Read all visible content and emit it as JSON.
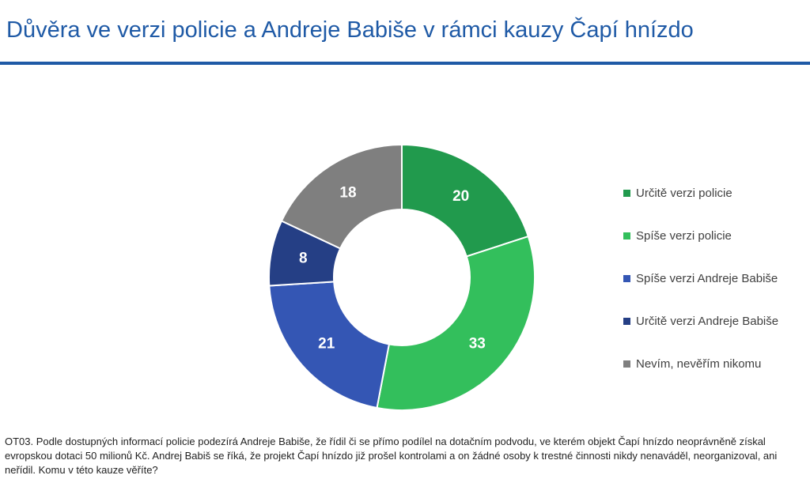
{
  "header": {
    "title": "Důvěra ve verzi policie a Andreje Babiše v rámci kauzy Čapí hnízdo",
    "rule_color": "#1f5aa6"
  },
  "chart_data": {
    "type": "pie",
    "donut": true,
    "categories": [
      "Určitě verzi policie",
      "Spíše verzi policie",
      "Spíše verzi Andreje Babiše",
      "Určitě verzi Andreje Babiše",
      "Nevím, nevěřím nikomu"
    ],
    "values": [
      20,
      33,
      21,
      8,
      18
    ],
    "labels": [
      "20",
      "33",
      "21",
      "8",
      "18"
    ],
    "colors": [
      "#219a4d",
      "#33bf5c",
      "#3456b4",
      "#253f85",
      "#7f7f7f"
    ],
    "legend": "right"
  },
  "footnote": {
    "text": "OT03. Podle dostupných informací policie podezírá Andreje Babiše, že řídil či se přímo podílel na dotačním podvodu, ve kterém objekt Čapí hnízdo neoprávněně získal evropskou dotaci 50 milionů Kč. Andrej Babiš se říká, že projekt Čapí hnízdo již prošel kontrolami a on žádné osoby k trestné činnosti nikdy nenaváděl, neorganizoval, ani neřídil. Komu v této kauze věříte?"
  }
}
